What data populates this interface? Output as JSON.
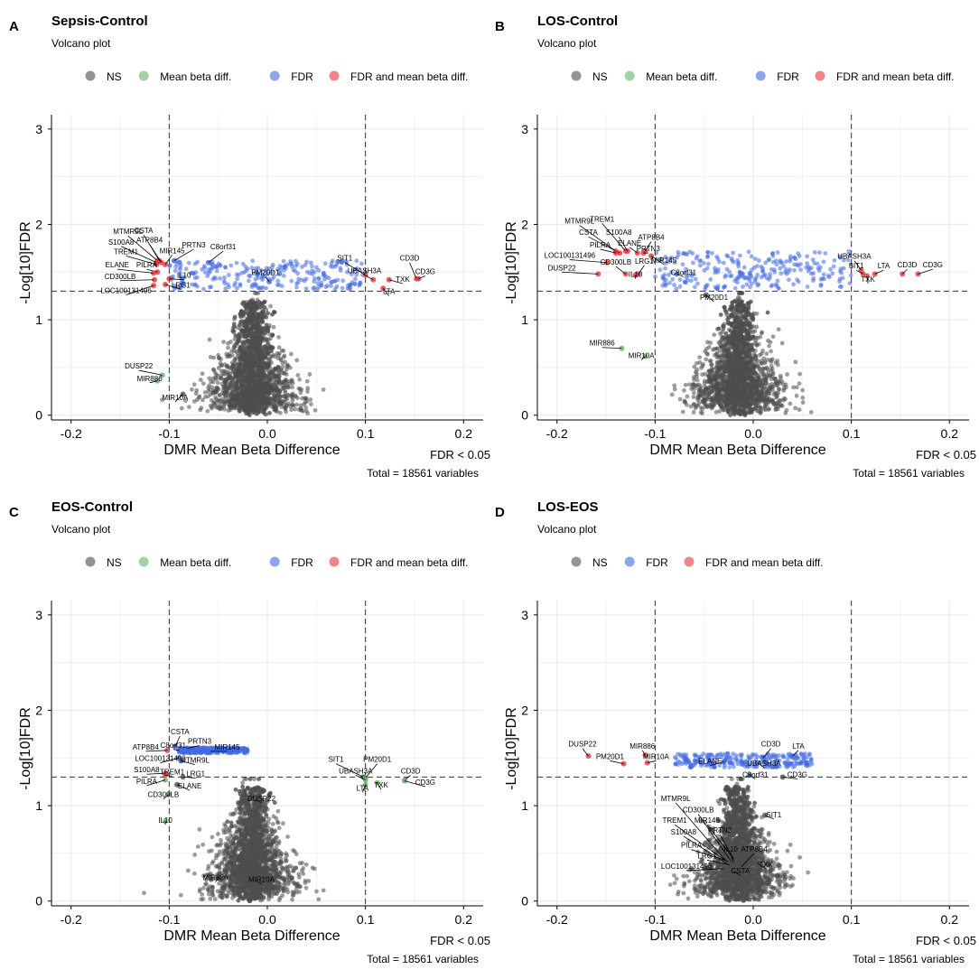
{
  "figure": {
    "panels": [
      {
        "letter": "A",
        "title": "Sepsis-Control",
        "subtitle": "Volcano plot"
      },
      {
        "letter": "B",
        "title": "LOS-Control",
        "subtitle": "Volcano plot"
      },
      {
        "letter": "C",
        "title": "EOS-Control",
        "subtitle": "Volcano plot"
      },
      {
        "letter": "D",
        "title": "LOS-EOS",
        "subtitle": "Volcano plot"
      }
    ],
    "caption_fdr": "FDR < 0.05",
    "caption_total": "Total = 18561 variables",
    "colors": {
      "ns": "#4d4d4d",
      "mean_beta_diff": "#66b266",
      "fdr": "#4169e1",
      "fdr_and_mean_beta_diff": "#e8333a"
    }
  },
  "chart_data": [
    {
      "type": "scatter",
      "title": "Sepsis-Control",
      "subtitle": "Volcano plot",
      "xlabel": "DMR Mean Beta Difference",
      "ylabel": "-Log[10]FDR",
      "xlim": [
        -0.22,
        0.22
      ],
      "ylim": [
        -0.05,
        3.15
      ],
      "xticks": [
        "-0.2",
        "-0.1",
        "0.0",
        "0.1",
        "0.2"
      ],
      "yticks": [
        "0",
        "1",
        "2",
        "3"
      ],
      "thresholds": {
        "x": [
          -0.1,
          0.1
        ],
        "y": 1.3
      },
      "legend": [
        "NS",
        "Mean beta diff.",
        "FDR",
        "FDR and mean beta diff."
      ],
      "caption": [
        "FDR < 0.05",
        "Total = 18561 variables"
      ],
      "labels": [
        {
          "text": "MTMR9L",
          "x": -0.142,
          "y": 1.88,
          "px": -0.112,
          "py": 1.62
        },
        {
          "text": "CSTA",
          "x": -0.126,
          "y": 1.89,
          "px": -0.11,
          "py": 1.62
        },
        {
          "text": "ATP8B4",
          "x": -0.12,
          "y": 1.79,
          "px": -0.108,
          "py": 1.6
        },
        {
          "text": "S100A8",
          "x": -0.149,
          "y": 1.77,
          "px": -0.113,
          "py": 1.6
        },
        {
          "text": "PRTN3",
          "x": -0.075,
          "y": 1.74,
          "px": -0.095,
          "py": 1.62
        },
        {
          "text": "C8orf31",
          "x": -0.045,
          "y": 1.72,
          "px": -0.06,
          "py": 1.6
        },
        {
          "text": "MIR145",
          "x": -0.097,
          "y": 1.68,
          "px": -0.104,
          "py": 1.58
        },
        {
          "text": "TREM1",
          "x": -0.144,
          "y": 1.67,
          "px": -0.113,
          "py": 1.58
        },
        {
          "text": "PILRA",
          "x": -0.123,
          "y": 1.53,
          "px": -0.112,
          "py": 1.5
        },
        {
          "text": "ELANE",
          "x": -0.153,
          "y": 1.53,
          "px": -0.116,
          "py": 1.49
        },
        {
          "text": "IL10",
          "x": -0.085,
          "y": 1.42,
          "px": -0.1,
          "py": 1.43
        },
        {
          "text": "CD300LB",
          "x": -0.15,
          "y": 1.41,
          "px": -0.115,
          "py": 1.42
        },
        {
          "text": "PM20D1",
          "x": -0.002,
          "y": 1.45,
          "px": 0.002,
          "py": 1.4
        },
        {
          "text": "LRG1",
          "x": -0.088,
          "y": 1.32,
          "px": -0.104,
          "py": 1.37
        },
        {
          "text": "LOC100131496",
          "x": -0.144,
          "y": 1.26,
          "px": -0.116,
          "py": 1.36
        },
        {
          "text": "SIT1",
          "x": 0.079,
          "y": 1.6,
          "px": 0.1,
          "py": 1.47
        },
        {
          "text": "CD3D",
          "x": 0.145,
          "y": 1.6,
          "px": 0.152,
          "py": 1.43
        },
        {
          "text": "UBASH3A",
          "x": 0.099,
          "y": 1.47,
          "px": 0.108,
          "py": 1.42
        },
        {
          "text": "CD3G",
          "x": 0.161,
          "y": 1.46,
          "px": 0.154,
          "py": 1.43
        },
        {
          "text": "TXK",
          "x": 0.138,
          "y": 1.38,
          "px": 0.124,
          "py": 1.42
        },
        {
          "text": "LTA",
          "x": 0.124,
          "y": 1.25,
          "px": 0.118,
          "py": 1.33
        },
        {
          "text": "DUSP22",
          "x": -0.131,
          "y": 0.47,
          "px": -0.107,
          "py": 0.42
        },
        {
          "text": "MIR886",
          "x": -0.12,
          "y": 0.34,
          "px": -0.112,
          "py": 0.36
        },
        {
          "text": "MIR10A",
          "x": -0.094,
          "y": 0.14,
          "px": -0.086,
          "py": 0.22
        }
      ]
    },
    {
      "type": "scatter",
      "title": "LOS-Control",
      "subtitle": "Volcano plot",
      "xlabel": "DMR Mean Beta Difference",
      "ylabel": "-Log[10]FDR",
      "xlim": [
        -0.22,
        0.22
      ],
      "ylim": [
        -0.05,
        3.15
      ],
      "xticks": [
        "-0.2",
        "-0.1",
        "0.0",
        "0.1",
        "0.2"
      ],
      "yticks": [
        "0",
        "1",
        "2",
        "3"
      ],
      "thresholds": {
        "x": [
          -0.1,
          0.1
        ],
        "y": 1.3
      },
      "legend": [
        "NS",
        "Mean beta diff.",
        "FDR",
        "FDR and mean beta diff."
      ],
      "caption": [
        "FDR < 0.05",
        "Total = 18561 variables"
      ],
      "labels": [
        {
          "text": "MTMR9L",
          "x": -0.177,
          "y": 1.99,
          "px": -0.14,
          "py": 1.72
        },
        {
          "text": "TREM1",
          "x": -0.154,
          "y": 2.01,
          "px": -0.13,
          "py": 1.72
        },
        {
          "text": "CSTA",
          "x": -0.168,
          "y": 1.87,
          "px": -0.136,
          "py": 1.7
        },
        {
          "text": "S100A8",
          "x": -0.137,
          "y": 1.87,
          "px": -0.128,
          "py": 1.72
        },
        {
          "text": "ATP8B4",
          "x": -0.104,
          "y": 1.82,
          "px": -0.11,
          "py": 1.72
        },
        {
          "text": "ELANE",
          "x": -0.126,
          "y": 1.76,
          "px": -0.118,
          "py": 1.7
        },
        {
          "text": "PILRA",
          "x": -0.156,
          "y": 1.74,
          "px": -0.14,
          "py": 1.7
        },
        {
          "text": "PRTN3",
          "x": -0.107,
          "y": 1.7,
          "px": -0.112,
          "py": 1.7
        },
        {
          "text": "MIR145",
          "x": -0.091,
          "y": 1.58,
          "px": -0.104,
          "py": 1.67
        },
        {
          "text": "LOC100131496",
          "x": -0.187,
          "y": 1.63,
          "px": -0.149,
          "py": 1.6
        },
        {
          "text": "CD300LB",
          "x": -0.14,
          "y": 1.56,
          "px": -0.13,
          "py": 1.48
        },
        {
          "text": "LRG1",
          "x": -0.111,
          "y": 1.57,
          "px": -0.117,
          "py": 1.48
        },
        {
          "text": "DUSP22",
          "x": -0.195,
          "y": 1.5,
          "px": -0.158,
          "py": 1.48
        },
        {
          "text": "IL10",
          "x": -0.12,
          "y": 1.43,
          "px": -0.12,
          "py": 1.47
        },
        {
          "text": "C8orf31",
          "x": -0.071,
          "y": 1.45,
          "px": -0.078,
          "py": 1.48
        },
        {
          "text": "PM20D1",
          "x": -0.04,
          "y": 1.19,
          "px": -0.048,
          "py": 1.26
        },
        {
          "text": "UBASH3A",
          "x": 0.103,
          "y": 1.62,
          "px": 0.11,
          "py": 1.52
        },
        {
          "text": "SIT1",
          "x": 0.105,
          "y": 1.52,
          "px": 0.112,
          "py": 1.48
        },
        {
          "text": "LTA",
          "x": 0.133,
          "y": 1.52,
          "px": 0.124,
          "py": 1.48
        },
        {
          "text": "CD3D",
          "x": 0.157,
          "y": 1.53,
          "px": 0.152,
          "py": 1.48
        },
        {
          "text": "CD3G",
          "x": 0.183,
          "y": 1.53,
          "px": 0.168,
          "py": 1.48
        },
        {
          "text": "TXK",
          "x": 0.117,
          "y": 1.38,
          "px": 0.116,
          "py": 1.46
        },
        {
          "text": "MIR886",
          "x": -0.154,
          "y": 0.71,
          "px": -0.134,
          "py": 0.7
        },
        {
          "text": "MIR10A",
          "x": -0.114,
          "y": 0.58,
          "px": -0.11,
          "py": 0.62
        }
      ]
    },
    {
      "type": "scatter",
      "title": "EOS-Control",
      "subtitle": "Volcano plot",
      "xlabel": "DMR Mean Beta Difference",
      "ylabel": "-Log[10]FDR",
      "xlim": [
        -0.22,
        0.22
      ],
      "ylim": [
        -0.05,
        3.15
      ],
      "xticks": [
        "-0.2",
        "-0.1",
        "0.0",
        "0.1",
        "0.2"
      ],
      "yticks": [
        "0",
        "1",
        "2",
        "3"
      ],
      "thresholds": {
        "x": [
          -0.1,
          0.1
        ],
        "y": 1.3
      },
      "legend": [
        "NS",
        "Mean beta diff.",
        "FDR",
        "FDR and mean beta diff."
      ],
      "caption": [
        "FDR < 0.05",
        "Total = 18561 variables"
      ],
      "labels": [
        {
          "text": "CSTA",
          "x": -0.089,
          "y": 1.73,
          "px": -0.094,
          "py": 1.62
        },
        {
          "text": "PRTN3",
          "x": -0.069,
          "y": 1.63,
          "px": -0.082,
          "py": 1.6
        },
        {
          "text": "ATP8B4",
          "x": -0.124,
          "y": 1.57,
          "px": -0.102,
          "py": 1.58
        },
        {
          "text": "C8orf31",
          "x": -0.096,
          "y": 1.59,
          "px": -0.09,
          "py": 1.58
        },
        {
          "text": "MIR145",
          "x": -0.041,
          "y": 1.57,
          "px": -0.058,
          "py": 1.57
        },
        {
          "text": "LOC100131496",
          "x": -0.109,
          "y": 1.45,
          "px": -0.09,
          "py": 1.5
        },
        {
          "text": "MTMR9L",
          "x": -0.074,
          "y": 1.43,
          "px": -0.088,
          "py": 1.47
        },
        {
          "text": "S100A8",
          "x": -0.123,
          "y": 1.33,
          "px": -0.104,
          "py": 1.34
        },
        {
          "text": "TREM1",
          "x": -0.097,
          "y": 1.31,
          "px": -0.104,
          "py": 1.32
        },
        {
          "text": "LRG1",
          "x": -0.073,
          "y": 1.29,
          "px": -0.086,
          "py": 1.3
        },
        {
          "text": "PILRA",
          "x": -0.123,
          "y": 1.21,
          "px": -0.104,
          "py": 1.27
        },
        {
          "text": "ELANE",
          "x": -0.079,
          "y": 1.16,
          "px": -0.092,
          "py": 1.22
        },
        {
          "text": "CD300LB",
          "x": -0.106,
          "y": 1.07,
          "px": -0.1,
          "py": 1.12
        },
        {
          "text": "IL10",
          "x": -0.104,
          "y": 0.8,
          "px": -0.104,
          "py": 0.84
        },
        {
          "text": "DUSP22",
          "x": -0.006,
          "y": 1.03,
          "px": -0.012,
          "py": 1.06
        },
        {
          "text": "SIT1",
          "x": 0.07,
          "y": 1.44,
          "px": 0.098,
          "py": 1.3
        },
        {
          "text": "PM20D1",
          "x": 0.112,
          "y": 1.44,
          "px": 0.1,
          "py": 1.29
        },
        {
          "text": "UBASH3A",
          "x": 0.09,
          "y": 1.32,
          "px": 0.1,
          "py": 1.27
        },
        {
          "text": "CD3D",
          "x": 0.146,
          "y": 1.32,
          "px": 0.14,
          "py": 1.27
        },
        {
          "text": "CD3G",
          "x": 0.161,
          "y": 1.2,
          "px": 0.14,
          "py": 1.26
        },
        {
          "text": "TXK",
          "x": 0.116,
          "y": 1.17,
          "px": 0.112,
          "py": 1.24
        },
        {
          "text": "LTA",
          "x": 0.097,
          "y": 1.14,
          "px": 0.1,
          "py": 1.22
        },
        {
          "text": "MIR886",
          "x": -0.053,
          "y": 0.2,
          "px": -0.05,
          "py": 0.24
        },
        {
          "text": "MIR10A",
          "x": -0.006,
          "y": 0.18,
          "px": -0.012,
          "py": 0.22
        }
      ]
    },
    {
      "type": "scatter",
      "title": "LOS-EOS",
      "subtitle": "Volcano plot",
      "xlabel": "DMR Mean Beta Difference",
      "ylabel": "-Log[10]FDR",
      "xlim": [
        -0.22,
        0.22
      ],
      "ylim": [
        -0.05,
        3.15
      ],
      "xticks": [
        "-0.2",
        "-0.1",
        "0.0",
        "0.1",
        "0.2"
      ],
      "yticks": [
        "0",
        "1",
        "2",
        "3"
      ],
      "thresholds": {
        "x": [
          -0.1,
          0.1
        ],
        "y": 1.3
      },
      "legend": [
        "NS",
        "FDR",
        "FDR and mean beta diff."
      ],
      "caption": [
        "FDR < 0.05",
        "Total = 18561 variables"
      ],
      "labels": [
        {
          "text": "DUSP22",
          "x": -0.174,
          "y": 1.6,
          "px": -0.168,
          "py": 1.52
        },
        {
          "text": "MIR886",
          "x": -0.113,
          "y": 1.58,
          "px": -0.11,
          "py": 1.53
        },
        {
          "text": "PM20D1",
          "x": -0.146,
          "y": 1.47,
          "px": -0.132,
          "py": 1.44
        },
        {
          "text": "MIR10A",
          "x": -0.099,
          "y": 1.47,
          "px": -0.108,
          "py": 1.45
        },
        {
          "text": "CD3D",
          "x": 0.018,
          "y": 1.6,
          "px": 0.01,
          "py": 1.5
        },
        {
          "text": "LTA",
          "x": 0.046,
          "y": 1.58,
          "px": 0.04,
          "py": 1.52
        },
        {
          "text": "ELANE",
          "x": -0.044,
          "y": 1.42,
          "px": -0.03,
          "py": 1.46
        },
        {
          "text": "UBASH3A",
          "x": 0.011,
          "y": 1.4,
          "px": 0.004,
          "py": 1.45
        },
        {
          "text": "C8orf31",
          "x": 0.002,
          "y": 1.28,
          "px": -0.004,
          "py": 1.32
        },
        {
          "text": "CD3G",
          "x": 0.045,
          "y": 1.28,
          "px": 0.03,
          "py": 1.3
        },
        {
          "text": "MTMR9L",
          "x": -0.079,
          "y": 1.03,
          "px": -0.026,
          "py": 0.4
        },
        {
          "text": "CD300LB",
          "x": -0.056,
          "y": 0.91,
          "px": -0.02,
          "py": 0.38
        },
        {
          "text": "MIR145",
          "x": -0.047,
          "y": 0.8,
          "px": -0.018,
          "py": 0.42
        },
        {
          "text": "SIT1",
          "x": 0.021,
          "y": 0.86,
          "px": 0.012,
          "py": 0.9
        },
        {
          "text": "TREM1",
          "x": -0.08,
          "y": 0.8,
          "px": -0.022,
          "py": 0.38
        },
        {
          "text": "PRTN3",
          "x": -0.034,
          "y": 0.7,
          "px": -0.02,
          "py": 0.44
        },
        {
          "text": "S100A8",
          "x": -0.071,
          "y": 0.68,
          "px": -0.022,
          "py": 0.36
        },
        {
          "text": "IL10",
          "x": -0.023,
          "y": 0.5,
          "px": -0.02,
          "py": 0.4
        },
        {
          "text": "ATP8B4",
          "x": 0.001,
          "y": 0.5,
          "px": -0.012,
          "py": 0.36
        },
        {
          "text": "PILRA",
          "x": -0.063,
          "y": 0.54,
          "px": -0.026,
          "py": 0.42
        },
        {
          "text": "LRG1",
          "x": -0.047,
          "y": 0.43,
          "px": -0.024,
          "py": 0.38
        },
        {
          "text": "LOC100131496",
          "x": -0.068,
          "y": 0.32,
          "px": -0.03,
          "py": 0.34
        },
        {
          "text": "TXK",
          "x": 0.013,
          "y": 0.34,
          "px": 0.004,
          "py": 0.4
        },
        {
          "text": "CSTA",
          "x": -0.013,
          "y": 0.27,
          "px": -0.02,
          "py": 0.31
        }
      ]
    }
  ]
}
